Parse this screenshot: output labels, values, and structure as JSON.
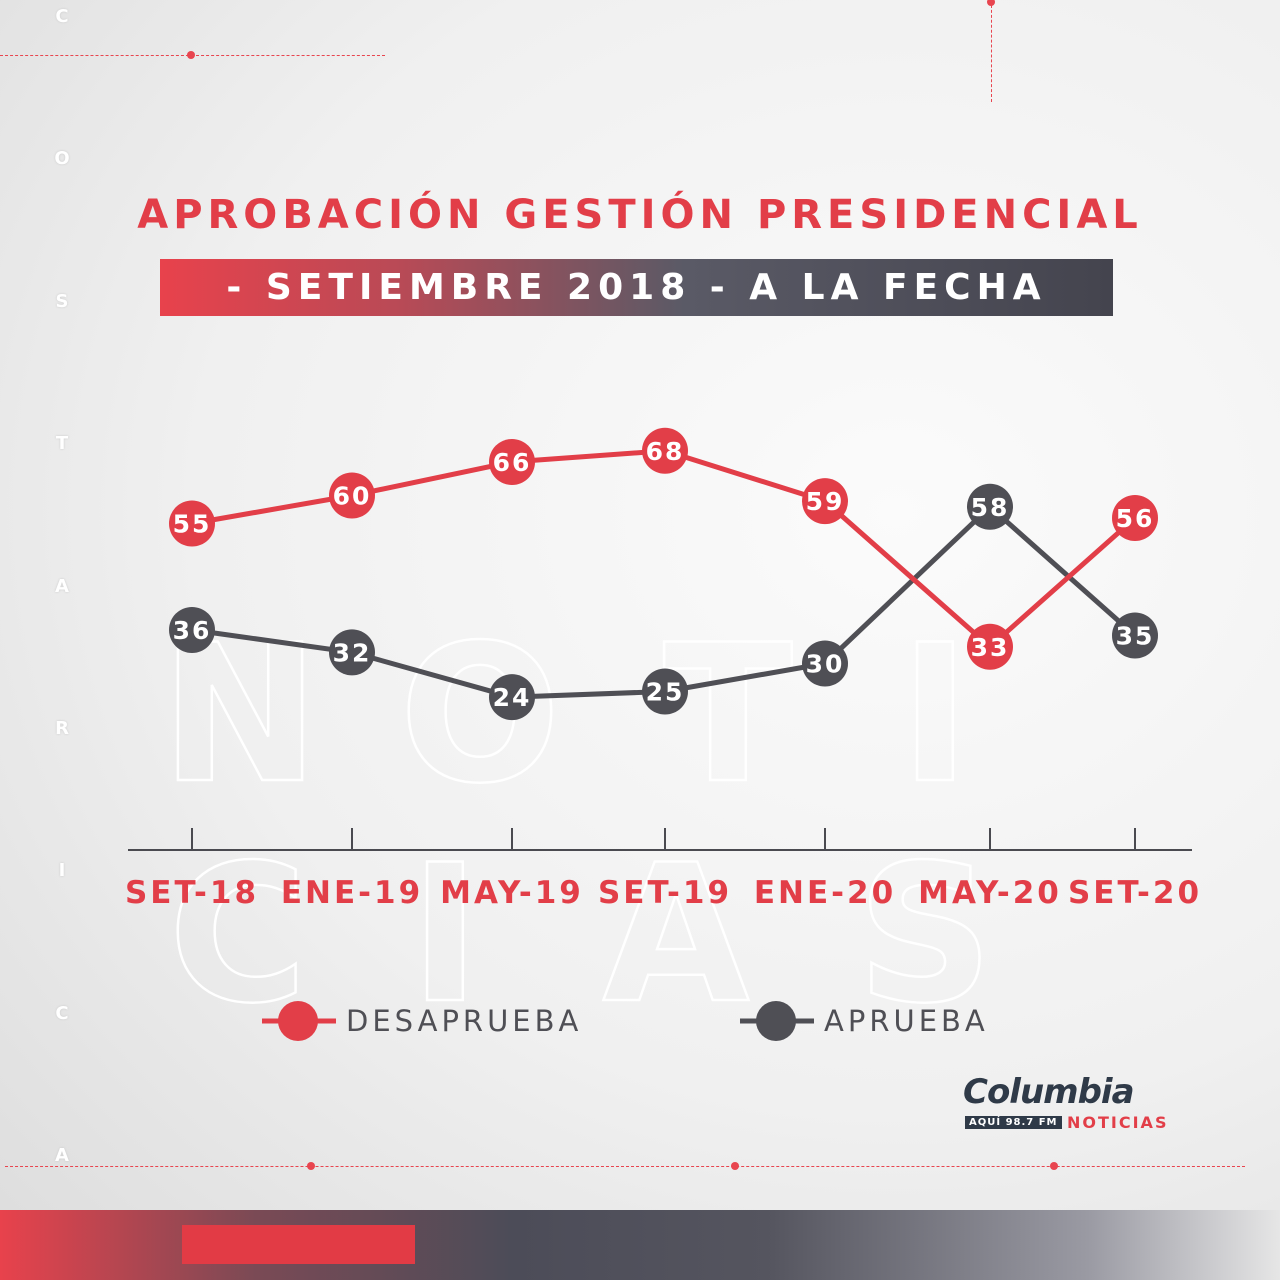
{
  "background": {
    "side_letters": [
      "C",
      "O",
      "S",
      "T",
      "A",
      "R",
      "I",
      "C",
      "A"
    ],
    "watermark_line1": [
      "N",
      "O",
      "T",
      "I"
    ],
    "watermark_line2": [
      "C",
      "I",
      "A",
      "S"
    ]
  },
  "header": {
    "title": "APROBACIÓN GESTIÓN PRESIDENCIAL",
    "subtitle": "- SETIEMBRE 2018 - A LA FECHA"
  },
  "chart_data": {
    "type": "line",
    "categories": [
      "SET-18",
      "ENE-19",
      "MAY-19",
      "SET-19",
      "ENE-20",
      "MAY-20",
      "SET-20"
    ],
    "series": [
      {
        "name": "DESAPRUEBA",
        "color": "#e23e48",
        "values": [
          55,
          60,
          66,
          68,
          59,
          33,
          56
        ]
      },
      {
        "name": "APRUEBA",
        "color": "#4f4f55",
        "values": [
          36,
          32,
          24,
          25,
          30,
          58,
          35
        ]
      }
    ],
    "grid": false,
    "legend": "bottom"
  },
  "legend": {
    "items": [
      {
        "label": "DESAPRUEBA",
        "color": "#e23e48"
      },
      {
        "label": "APRUEBA",
        "color": "#4f4f55"
      }
    ]
  },
  "logo": {
    "name": "Columbia",
    "tag": "AQUÍ 98.7 FM",
    "sub": "NOTICIAS"
  },
  "colors": {
    "accent": "#e23e48",
    "dark": "#4f4f55"
  }
}
